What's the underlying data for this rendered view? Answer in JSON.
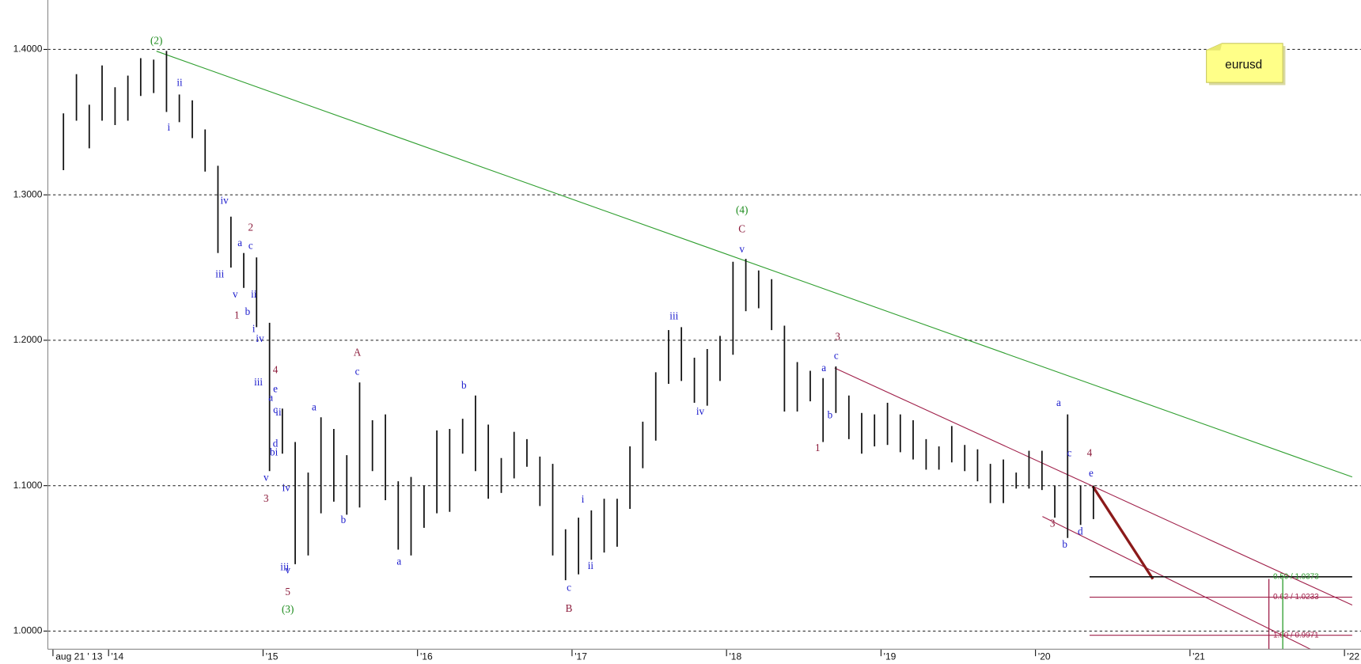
{
  "chart_data": {
    "type": "rangebar",
    "note": "eurusd",
    "color": "#111111",
    "grid": true,
    "xlim": [
      2013.607,
      2022.05
    ],
    "ylim": [
      0.9875,
      1.434
    ],
    "yticks": [
      {
        "value": 1.0,
        "label": "1.0000"
      },
      {
        "value": 1.1,
        "label": "1.1000"
      },
      {
        "value": 1.2,
        "label": "1.2000"
      },
      {
        "value": 1.3,
        "label": "1.3000"
      },
      {
        "value": 1.4,
        "label": "1.4000"
      }
    ],
    "xticks": [
      {
        "value": 2013.64,
        "label": "aug 21 ' 13"
      },
      {
        "value": 2014,
        "label": "'14"
      },
      {
        "value": 2015,
        "label": "'15"
      },
      {
        "value": 2016,
        "label": "'16"
      },
      {
        "value": 2017,
        "label": "'17"
      },
      {
        "value": 2018,
        "label": "'18"
      },
      {
        "value": 2019,
        "label": "'19"
      },
      {
        "value": 2020,
        "label": "'20"
      },
      {
        "value": 2021,
        "label": "'21"
      },
      {
        "value": 2022,
        "label": "'22"
      }
    ],
    "x": [
      2013.708,
      2013.792,
      2013.875,
      2013.958,
      2014.042,
      2014.125,
      2014.208,
      2014.292,
      2014.375,
      2014.458,
      2014.542,
      2014.625,
      2014.708,
      2014.792,
      2014.875,
      2014.958,
      2015.042,
      2015.125,
      2015.208,
      2015.292,
      2015.375,
      2015.458,
      2015.542,
      2015.625,
      2015.708,
      2015.792,
      2015.875,
      2015.958,
      2016.042,
      2016.125,
      2016.208,
      2016.292,
      2016.375,
      2016.458,
      2016.542,
      2016.625,
      2016.708,
      2016.792,
      2016.875,
      2016.958,
      2017.042,
      2017.125,
      2017.208,
      2017.292,
      2017.375,
      2017.458,
      2017.542,
      2017.625,
      2017.708,
      2017.792,
      2017.875,
      2017.958,
      2018.042,
      2018.125,
      2018.208,
      2018.292,
      2018.375,
      2018.458,
      2018.542,
      2018.625,
      2018.708,
      2018.792,
      2018.875,
      2018.958,
      2019.042,
      2019.125,
      2019.208,
      2019.292,
      2019.375,
      2019.458,
      2019.542,
      2019.625,
      2019.708,
      2019.792,
      2019.875,
      2019.958,
      2020.042,
      2020.125,
      2020.208,
      2020.292,
      2020.375
    ],
    "high": [
      1.356,
      1.383,
      1.362,
      1.389,
      1.374,
      1.382,
      1.394,
      1.393,
      1.399,
      1.369,
      1.365,
      1.345,
      1.32,
      1.285,
      1.26,
      1.257,
      1.212,
      1.153,
      1.13,
      1.109,
      1.147,
      1.139,
      1.121,
      1.171,
      1.145,
      1.149,
      1.103,
      1.106,
      1.1,
      1.138,
      1.139,
      1.146,
      1.162,
      1.142,
      1.119,
      1.137,
      1.132,
      1.12,
      1.115,
      1.07,
      1.078,
      1.083,
      1.091,
      1.091,
      1.127,
      1.144,
      1.178,
      1.207,
      1.209,
      1.188,
      1.194,
      1.203,
      1.254,
      1.256,
      1.248,
      1.242,
      1.21,
      1.185,
      1.179,
      1.174,
      1.182,
      1.162,
      1.15,
      1.149,
      1.157,
      1.149,
      1.145,
      1.132,
      1.127,
      1.141,
      1.128,
      1.125,
      1.115,
      1.118,
      1.109,
      1.124,
      1.124,
      1.1,
      1.149,
      1.1,
      1.1
    ],
    "low": [
      1.317,
      1.351,
      1.332,
      1.351,
      1.348,
      1.351,
      1.368,
      1.37,
      1.357,
      1.35,
      1.339,
      1.316,
      1.26,
      1.25,
      1.236,
      1.209,
      1.11,
      1.122,
      1.046,
      1.052,
      1.081,
      1.089,
      1.08,
      1.085,
      1.11,
      1.09,
      1.056,
      1.052,
      1.071,
      1.081,
      1.082,
      1.122,
      1.11,
      1.091,
      1.095,
      1.105,
      1.113,
      1.086,
      1.052,
      1.035,
      1.039,
      1.049,
      1.054,
      1.058,
      1.084,
      1.112,
      1.131,
      1.17,
      1.172,
      1.157,
      1.155,
      1.172,
      1.19,
      1.22,
      1.222,
      1.207,
      1.151,
      1.151,
      1.158,
      1.13,
      1.15,
      1.132,
      1.122,
      1.127,
      1.128,
      1.123,
      1.118,
      1.111,
      1.111,
      1.116,
      1.11,
      1.103,
      1.088,
      1.088,
      1.098,
      1.098,
      1.097,
      1.078,
      1.064,
      1.073,
      1.077
    ],
    "trendlines": [
      {
        "color": "#2e9e2e",
        "width": 1,
        "x": [
          2014.31,
          2022.05
        ],
        "y": [
          1.3988,
          1.106
        ]
      },
      {
        "color": "#a0204a",
        "width": 1,
        "x": [
          2018.7,
          2022.05
        ],
        "y": [
          1.1809,
          1.0179
        ]
      },
      {
        "color": "#a0204a",
        "width": 1,
        "x": [
          2020.045,
          2021.78
        ],
        "y": [
          1.0788,
          0.9875
        ]
      },
      {
        "color": "#8b1a1a",
        "width": 3,
        "x": [
          2020.37,
          2020.76
        ],
        "y": [
          1.0997,
          1.0358
        ]
      }
    ],
    "fib_x": [
      2020.35,
      2022.05
    ],
    "fib": [
      {
        "label": "0.50 / 1.0373",
        "value": 1.0373,
        "color": "#111111",
        "text_color": "#2e9e2e"
      },
      {
        "label": "0.62 / 1.0233",
        "value": 1.0233,
        "color": "#a0204a",
        "text_color": "#a0204a"
      },
      {
        "label": "1.00 / 0.9971",
        "value": 0.9971,
        "color": "#a0204a",
        "text_color": "#a0204a"
      }
    ],
    "annotations": [
      {
        "text": "(2)",
        "x": 2014.31,
        "y": 1.4054,
        "color": "#1a8a1a"
      },
      {
        "text": "(4)",
        "x": 2018.1,
        "y": 1.289,
        "color": "#1a8a1a"
      },
      {
        "text": "(3)",
        "x": 2015.16,
        "y": 1.0143,
        "color": "#1a8a1a"
      },
      {
        "text": "C",
        "x": 2018.1,
        "y": 1.2758,
        "color": "#8b1a3a"
      },
      {
        "text": "A",
        "x": 2015.61,
        "y": 1.191,
        "color": "#8b1a3a"
      },
      {
        "text": "B",
        "x": 2016.98,
        "y": 1.0149,
        "color": "#8b1a3a"
      },
      {
        "text": "1",
        "x": 2014.83,
        "y": 1.2167,
        "color": "#8b1a3a"
      },
      {
        "text": "2",
        "x": 2014.92,
        "y": 1.277,
        "color": "#8b1a3a"
      },
      {
        "text": "3",
        "x": 2015.02,
        "y": 1.0907,
        "color": "#8b1a3a"
      },
      {
        "text": "4",
        "x": 2015.08,
        "y": 1.1791,
        "color": "#8b1a3a"
      },
      {
        "text": "5",
        "x": 2015.16,
        "y": 1.0263,
        "color": "#8b1a3a"
      },
      {
        "text": "3",
        "x": 2018.72,
        "y": 1.2018,
        "color": "#8b1a3a"
      },
      {
        "text": "1",
        "x": 2018.59,
        "y": 1.1254,
        "color": "#8b1a3a"
      },
      {
        "text": "3",
        "x": 2020.11,
        "y": 1.0734,
        "color": "#8b1a3a"
      },
      {
        "text": "4",
        "x": 2020.35,
        "y": 1.1218,
        "color": "#8b1a3a"
      },
      {
        "text": "ii",
        "x": 2014.46,
        "y": 1.3767,
        "color": "#1a1acc"
      },
      {
        "text": "i",
        "x": 2014.39,
        "y": 1.3457,
        "color": "#1a1acc"
      },
      {
        "text": "iv",
        "x": 2014.75,
        "y": 1.2955,
        "color": "#1a1acc"
      },
      {
        "text": "iii",
        "x": 2014.72,
        "y": 1.2448,
        "color": "#1a1acc"
      },
      {
        "text": "a",
        "x": 2014.85,
        "y": 1.2663,
        "color": "#1a1acc"
      },
      {
        "text": "c",
        "x": 2014.92,
        "y": 1.2645,
        "color": "#1a1acc"
      },
      {
        "text": "v",
        "x": 2014.82,
        "y": 1.231,
        "color": "#1a1acc"
      },
      {
        "text": "b",
        "x": 2014.9,
        "y": 1.2191,
        "color": "#1a1acc"
      },
      {
        "text": "ii",
        "x": 2014.94,
        "y": 1.231,
        "color": "#1a1acc"
      },
      {
        "text": "i",
        "x": 2014.94,
        "y": 1.2072,
        "color": "#1a1acc"
      },
      {
        "text": "iv",
        "x": 2014.98,
        "y": 1.2006,
        "color": "#1a1acc"
      },
      {
        "text": "iii",
        "x": 2014.97,
        "y": 1.1707,
        "color": "#1a1acc"
      },
      {
        "text": "a",
        "x": 2015.05,
        "y": 1.16,
        "color": "#1a1acc"
      },
      {
        "text": "e",
        "x": 2015.08,
        "y": 1.166,
        "color": "#1a1acc"
      },
      {
        "text": "c",
        "x": 2015.08,
        "y": 1.1516,
        "color": "#1a1acc"
      },
      {
        "text": "ii",
        "x": 2015.1,
        "y": 1.1499,
        "color": "#1a1acc"
      },
      {
        "text": "d",
        "x": 2015.08,
        "y": 1.1284,
        "color": "#1a1acc"
      },
      {
        "text": "bi",
        "x": 2015.07,
        "y": 1.1224,
        "color": "#1a1acc"
      },
      {
        "text": "v",
        "x": 2015.02,
        "y": 1.1051,
        "color": "#1a1acc"
      },
      {
        "text": "iv",
        "x": 2015.15,
        "y": 1.098,
        "color": "#1a1acc"
      },
      {
        "text": "iii",
        "x": 2015.14,
        "y": 1.0436,
        "color": "#1a1acc"
      },
      {
        "text": "v",
        "x": 2015.16,
        "y": 1.0412,
        "color": "#1a1acc"
      },
      {
        "text": "c",
        "x": 2015.61,
        "y": 1.1779,
        "color": "#1a1acc"
      },
      {
        "text": "a",
        "x": 2015.33,
        "y": 1.1534,
        "color": "#1a1acc"
      },
      {
        "text": "b",
        "x": 2015.52,
        "y": 1.0758,
        "color": "#1a1acc"
      },
      {
        "text": "b",
        "x": 2016.3,
        "y": 1.1684,
        "color": "#1a1acc"
      },
      {
        "text": "a",
        "x": 2015.88,
        "y": 1.0472,
        "color": "#1a1acc"
      },
      {
        "text": "c",
        "x": 2016.98,
        "y": 1.0293,
        "color": "#1a1acc"
      },
      {
        "text": "i",
        "x": 2017.07,
        "y": 1.0901,
        "color": "#1a1acc"
      },
      {
        "text": "ii",
        "x": 2017.12,
        "y": 1.0442,
        "color": "#1a1acc"
      },
      {
        "text": "iii",
        "x": 2017.66,
        "y": 1.2161,
        "color": "#1a1acc"
      },
      {
        "text": "iv",
        "x": 2017.83,
        "y": 1.1504,
        "color": "#1a1acc"
      },
      {
        "text": "v",
        "x": 2018.1,
        "y": 1.2621,
        "color": "#1a1acc"
      },
      {
        "text": "a",
        "x": 2018.63,
        "y": 1.1803,
        "color": "#1a1acc"
      },
      {
        "text": "c",
        "x": 2018.71,
        "y": 1.1887,
        "color": "#1a1acc"
      },
      {
        "text": "b",
        "x": 2018.67,
        "y": 1.148,
        "color": "#1a1acc"
      },
      {
        "text": "a",
        "x": 2020.15,
        "y": 1.1564,
        "color": "#1a1acc"
      },
      {
        "text": "c",
        "x": 2020.22,
        "y": 1.1218,
        "color": "#1a1acc"
      },
      {
        "text": "e",
        "x": 2020.36,
        "y": 1.1081,
        "color": "#1a1acc"
      },
      {
        "text": "b",
        "x": 2020.19,
        "y": 1.0591,
        "color": "#1a1acc"
      },
      {
        "text": "d",
        "x": 2020.29,
        "y": 1.0681,
        "color": "#1a1acc"
      }
    ]
  }
}
